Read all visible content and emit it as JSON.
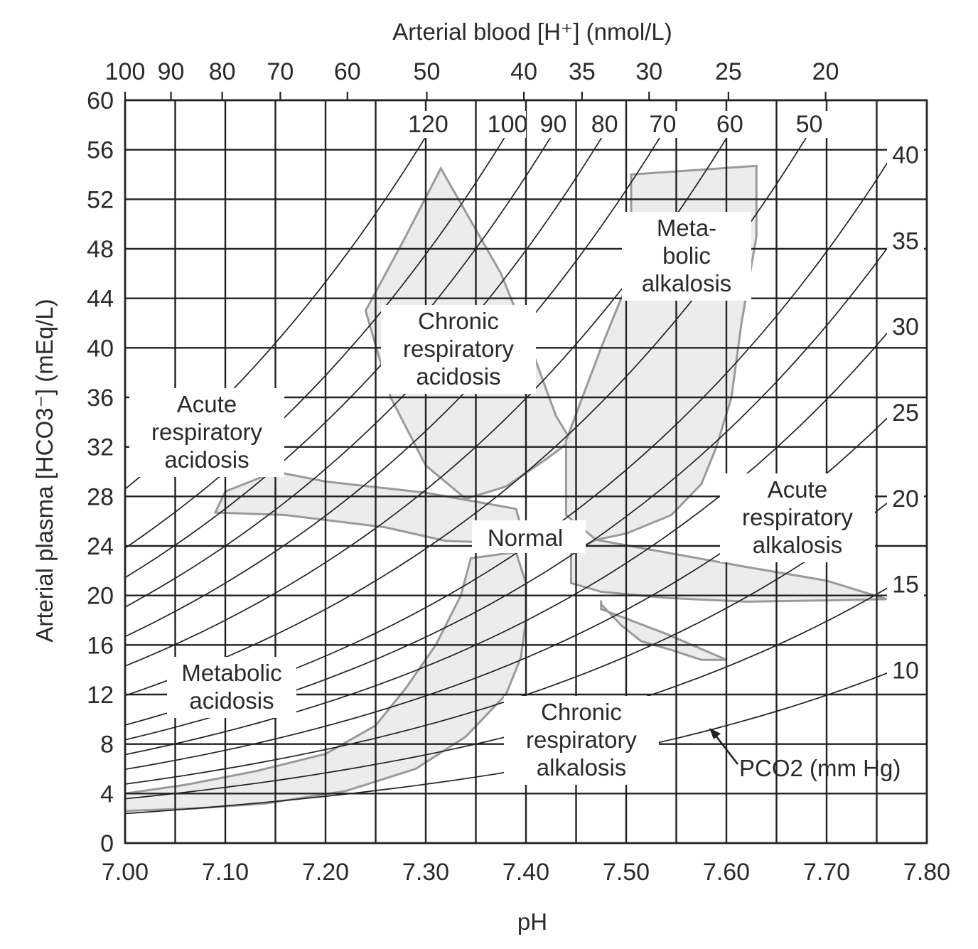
{
  "chart_data": {
    "type": "line",
    "title": "",
    "xlabel": "pH",
    "ylabel": "Arterial plasma [HCO3⁻] (mEq/L)",
    "x2label": "Arterial blood [H⁺] (nmol/L)",
    "xlim": [
      7.0,
      7.8
    ],
    "ylim": [
      0,
      60
    ],
    "grid": true,
    "x_ticks": [
      "7.00",
      "7.10",
      "7.20",
      "7.30",
      "7.40",
      "7.50",
      "7.60",
      "7.70",
      "7.80"
    ],
    "y_ticks": [
      "0",
      "4",
      "8",
      "12",
      "16",
      "20",
      "24",
      "28",
      "32",
      "36",
      "40",
      "44",
      "48",
      "52",
      "56",
      "60"
    ],
    "h_ticks": [
      "100",
      "90",
      "80",
      "70",
      "60",
      "50",
      "40",
      "35",
      "30",
      "25",
      "20"
    ],
    "pco2_series_label": "PCO2 (mm Hg)",
    "pco2_isopleths": [
      {
        "name": "120",
        "value": 120
      },
      {
        "name": "100",
        "value": 100
      },
      {
        "name": "90",
        "value": 90
      },
      {
        "name": "80",
        "value": 80
      },
      {
        "name": "70",
        "value": 70
      },
      {
        "name": "60",
        "value": 60
      },
      {
        "name": "50",
        "value": 50
      },
      {
        "name": "40",
        "value": 40
      },
      {
        "name": "35",
        "value": 35
      },
      {
        "name": "30",
        "value": 30
      },
      {
        "name": "25",
        "value": 25
      },
      {
        "name": "20",
        "value": 20
      },
      {
        "name": "15",
        "value": 15
      },
      {
        "name": "10",
        "value": 10
      }
    ],
    "regions": [
      {
        "name": "Acute respiratory acidosis",
        "lines": [
          "Acute",
          "respiratory",
          "acidosis"
        ],
        "points": [
          [
            7.09,
            26.7
          ],
          [
            7.16,
            26.5
          ],
          [
            7.26,
            25.5
          ],
          [
            7.32,
            24.4
          ],
          [
            7.4,
            24.2
          ],
          [
            7.39,
            27.0
          ],
          [
            7.3,
            28.3
          ],
          [
            7.2,
            29.2
          ],
          [
            7.15,
            30.0
          ],
          [
            7.1,
            28.4
          ]
        ]
      },
      {
        "name": "Chronic respiratory acidosis",
        "lines": [
          "Chronic",
          "respiratory",
          "acidosis"
        ],
        "points": [
          [
            7.315,
            54.5
          ],
          [
            7.375,
            46.0
          ],
          [
            7.405,
            40.0
          ],
          [
            7.43,
            34.5
          ],
          [
            7.445,
            32.5
          ],
          [
            7.42,
            31.0
          ],
          [
            7.38,
            28.8
          ],
          [
            7.34,
            27.8
          ],
          [
            7.3,
            30.5
          ],
          [
            7.265,
            36.0
          ],
          [
            7.24,
            43.0
          ],
          [
            7.28,
            49.0
          ]
        ]
      },
      {
        "name": "Metabolic alkalosis",
        "lines": [
          "Meta-",
          "bolic",
          "alkalosis"
        ],
        "points": [
          [
            7.505,
            54.0
          ],
          [
            7.63,
            54.7
          ],
          [
            7.63,
            49.0
          ],
          [
            7.615,
            42.0
          ],
          [
            7.605,
            36.0
          ],
          [
            7.59,
            32.0
          ],
          [
            7.575,
            29.0
          ],
          [
            7.545,
            26.5
          ],
          [
            7.5,
            25.0
          ],
          [
            7.47,
            24.5
          ],
          [
            7.44,
            26.5
          ],
          [
            7.44,
            32.5
          ],
          [
            7.475,
            40.0
          ],
          [
            7.505,
            46.0
          ]
        ]
      },
      {
        "name": "Acute respiratory alkalosis",
        "lines": [
          "Acute",
          "respiratory",
          "alkalosis"
        ],
        "points": [
          [
            7.47,
            24.5
          ],
          [
            7.545,
            23.4
          ],
          [
            7.62,
            22.3
          ],
          [
            7.7,
            21.2
          ],
          [
            7.76,
            19.7
          ],
          [
            7.7,
            19.6
          ],
          [
            7.62,
            19.5
          ],
          [
            7.54,
            19.8
          ],
          [
            7.475,
            20.3
          ],
          [
            7.445,
            21.0
          ],
          [
            7.445,
            23.5
          ]
        ]
      },
      {
        "name": "Chronic respiratory alkalosis",
        "lines": [
          "Chronic",
          "respiratory",
          "alkalosis"
        ],
        "points": [
          [
            7.475,
            19.3
          ],
          [
            7.495,
            17.6
          ],
          [
            7.515,
            16.3
          ],
          [
            7.545,
            15.6
          ],
          [
            7.575,
            14.8
          ],
          [
            7.6,
            14.8
          ],
          [
            7.54,
            16.9
          ],
          [
            7.475,
            18.9
          ],
          [
            7.475,
            19.6
          ]
        ]
      },
      {
        "name": "Metabolic acidosis",
        "lines": [
          "Metabolic",
          "acidosis"
        ],
        "points": [
          [
            7.345,
            23.0
          ],
          [
            7.335,
            20.0
          ],
          [
            7.31,
            16.0
          ],
          [
            7.28,
            12.5
          ],
          [
            7.25,
            9.5
          ],
          [
            7.2,
            7.2
          ],
          [
            7.13,
            5.8
          ],
          [
            7.06,
            4.7
          ],
          [
            7.0,
            4.0
          ],
          [
            7.0,
            2.6
          ],
          [
            7.07,
            2.8
          ],
          [
            7.14,
            3.2
          ],
          [
            7.22,
            4.2
          ],
          [
            7.29,
            6.0
          ],
          [
            7.34,
            8.6
          ],
          [
            7.38,
            12.0
          ],
          [
            7.395,
            15.0
          ],
          [
            7.4,
            18.0
          ],
          [
            7.4,
            21.0
          ],
          [
            7.39,
            23.5
          ]
        ]
      }
    ],
    "normal_label": "Normal"
  },
  "colors": {
    "grid": "#222222",
    "isopleth": "#222222",
    "region_fill": "#e9e9e9",
    "region_stroke": "#9a9a9a",
    "text": "#2a2a2a"
  }
}
